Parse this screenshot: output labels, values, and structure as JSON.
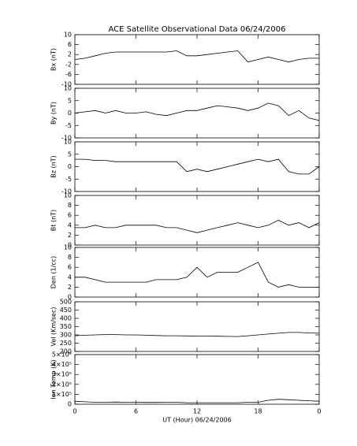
{
  "chart_data": [
    {
      "type": "line",
      "title": "ACE Satellite Observational Data   06/24/2006",
      "ylabel": "Bx (nT)",
      "xlim": [
        0,
        24
      ],
      "xticks": [
        0,
        6,
        12,
        18,
        {
          "value": 24,
          "label": "0"
        }
      ],
      "ylim": [
        -10,
        10
      ],
      "yticks": [
        -10,
        -6,
        -2,
        2,
        6,
        10
      ],
      "x": [
        0,
        1,
        2,
        3,
        4,
        5,
        6,
        7,
        8,
        9,
        10,
        11,
        12,
        13,
        14,
        15,
        16,
        17,
        18,
        19,
        20,
        21,
        22,
        23,
        24
      ],
      "values": [
        0,
        0.5,
        1.5,
        2.5,
        3,
        3,
        3,
        3,
        3,
        3,
        3.5,
        1.5,
        1.5,
        2,
        2.5,
        3,
        3.5,
        -1,
        0,
        1,
        0,
        -1,
        0,
        0.5,
        0.5
      ]
    },
    {
      "type": "line",
      "ylabel": "By (nT)",
      "xlim": [
        0,
        24
      ],
      "xticks": [
        0,
        6,
        12,
        18,
        {
          "value": 24,
          "label": "0"
        }
      ],
      "ylim": [
        -10,
        10
      ],
      "yticks": [
        -10,
        -5,
        0,
        5,
        10
      ],
      "x": [
        0,
        1,
        2,
        3,
        4,
        5,
        6,
        7,
        8,
        9,
        10,
        11,
        12,
        13,
        14,
        15,
        16,
        17,
        18,
        19,
        20,
        21,
        22,
        23,
        24
      ],
      "values": [
        0,
        0.5,
        1,
        0,
        1,
        0,
        0,
        0.5,
        -0.5,
        -1,
        0,
        1,
        1,
        2,
        3,
        2.5,
        2,
        1,
        2,
        4,
        3,
        -1,
        1,
        -2,
        -3
      ]
    },
    {
      "type": "line",
      "ylabel": "Bz (nT)",
      "xlim": [
        0,
        24
      ],
      "xticks": [
        0,
        6,
        12,
        18,
        {
          "value": 24,
          "label": "0"
        }
      ],
      "ylim": [
        -10,
        10
      ],
      "yticks": [
        -10,
        -5,
        0,
        5,
        10
      ],
      "x": [
        0,
        1,
        2,
        3,
        4,
        5,
        6,
        7,
        8,
        9,
        10,
        11,
        12,
        13,
        14,
        15,
        16,
        17,
        18,
        19,
        20,
        21,
        22,
        23,
        24
      ],
      "values": [
        3,
        3,
        2.5,
        2.5,
        2,
        2,
        2,
        2,
        2,
        2,
        2,
        -2,
        -1,
        -2,
        -1,
        0,
        1,
        2,
        3,
        2,
        3,
        -2,
        -3,
        -3,
        0
      ]
    },
    {
      "type": "line",
      "ylabel": "Bt (nT)",
      "xlim": [
        0,
        24
      ],
      "xticks": [
        0,
        6,
        12,
        18,
        {
          "value": 24,
          "label": "0"
        }
      ],
      "ylim": [
        0,
        10
      ],
      "yticks": [
        0,
        2,
        4,
        6,
        8,
        10
      ],
      "x": [
        0,
        1,
        2,
        3,
        4,
        5,
        6,
        7,
        8,
        9,
        10,
        11,
        12,
        13,
        14,
        15,
        16,
        17,
        18,
        19,
        20,
        21,
        22,
        23,
        24
      ],
      "values": [
        3.5,
        3.5,
        4,
        3.5,
        3.5,
        4,
        4,
        4,
        4,
        3.5,
        3.5,
        3,
        2.5,
        3,
        3.5,
        4,
        4.5,
        4,
        3.5,
        4,
        5,
        4,
        4.5,
        3.5,
        4.5
      ]
    },
    {
      "type": "line",
      "ylabel": "Den (1/cc)",
      "xlim": [
        0,
        24
      ],
      "xticks": [
        0,
        6,
        12,
        18,
        {
          "value": 24,
          "label": "0"
        }
      ],
      "ylim": [
        0,
        10
      ],
      "yticks": [
        0,
        2,
        4,
        6,
        8,
        10
      ],
      "x": [
        0,
        1,
        2,
        3,
        4,
        5,
        6,
        7,
        8,
        9,
        10,
        11,
        12,
        13,
        14,
        15,
        16,
        17,
        18,
        19,
        20,
        21,
        22,
        23,
        24
      ],
      "values": [
        4,
        4,
        3.5,
        3,
        3,
        3,
        3,
        3,
        3.5,
        3.5,
        3.5,
        4,
        6,
        4,
        5,
        5,
        5,
        6,
        7,
        3,
        2,
        2.5,
        2,
        2,
        2
      ]
    },
    {
      "type": "line",
      "ylabel": "Vel (Km/sec)",
      "xlim": [
        0,
        24
      ],
      "xticks": [
        0,
        6,
        12,
        18,
        {
          "value": 24,
          "label": "0"
        }
      ],
      "ylim": [
        200,
        500
      ],
      "yticks": [
        200,
        250,
        300,
        350,
        400,
        450,
        500
      ],
      "x": [
        0,
        1,
        2,
        3,
        4,
        5,
        6,
        7,
        8,
        9,
        10,
        11,
        12,
        13,
        14,
        15,
        16,
        17,
        18,
        19,
        20,
        21,
        22,
        23,
        24
      ],
      "values": [
        295,
        298,
        300,
        302,
        302,
        300,
        300,
        298,
        296,
        295,
        295,
        294,
        293,
        293,
        292,
        291,
        290,
        295,
        300,
        305,
        310,
        315,
        315,
        312,
        310
      ]
    },
    {
      "type": "line",
      "ylabel": "Ion Temp (K)",
      "xlabel": "UT (Hour)   06/24/2006",
      "xlim": [
        0,
        24
      ],
      "xticks": [
        0,
        6,
        12,
        18,
        {
          "value": 24,
          "label": "0"
        }
      ],
      "ylim": [
        0,
        500000
      ],
      "yticks": [
        0,
        {
          "value": 100000,
          "label": "1×10⁵"
        },
        {
          "value": 200000,
          "label": "2×10⁵"
        },
        {
          "value": 300000,
          "label": "3×10⁵"
        },
        {
          "value": 400000,
          "label": "4×10⁵"
        },
        {
          "value": 500000,
          "label": "5×10⁵"
        }
      ],
      "x": [
        0,
        1,
        2,
        3,
        4,
        5,
        6,
        7,
        8,
        9,
        10,
        11,
        12,
        13,
        14,
        15,
        16,
        17,
        18,
        19,
        20,
        21,
        22,
        23,
        24
      ],
      "values": [
        30000,
        25000,
        20000,
        20000,
        22000,
        20000,
        20000,
        18000,
        18000,
        20000,
        20000,
        15000,
        15000,
        15000,
        15000,
        15000,
        15000,
        20000,
        20000,
        40000,
        50000,
        45000,
        40000,
        35000,
        30000
      ]
    }
  ]
}
